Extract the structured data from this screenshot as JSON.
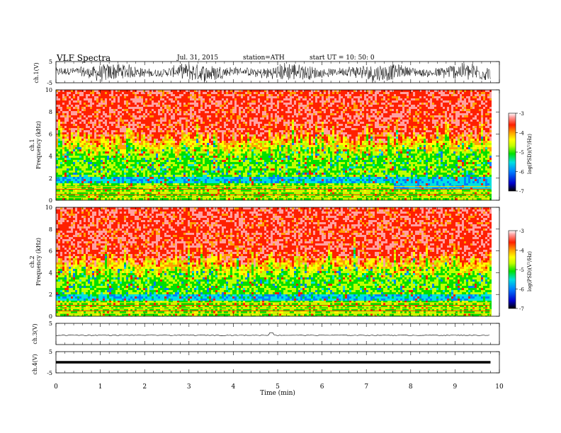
{
  "header": {
    "title": "VLF  Spectra",
    "date": "Jul.  31,  2015",
    "station": "station=ATH",
    "start": "start  UT  =    10: 50: 0"
  },
  "chart_data": [
    {
      "id": "ch1-wave",
      "type": "line",
      "ylabel": "ch.1(V)",
      "ylim": [
        -5,
        5
      ],
      "yticks": [
        "5",
        "-5"
      ],
      "xlim": [
        0,
        10
      ],
      "trace_end_min": 9.8,
      "color": "#000000"
    },
    {
      "id": "ch1-spec",
      "type": "heatmap",
      "ylabel_top": "ch.1",
      "ylabel": "Frequency  (kHz)",
      "ylim": [
        0,
        10
      ],
      "yticks": [
        "0",
        "2",
        "4",
        "6",
        "8",
        "10"
      ],
      "xlim": [
        0,
        10
      ],
      "colorbar": {
        "label": "log(PSD)(V²/Hz)",
        "range": [
          -7,
          -3
        ],
        "ticks": [
          "-3",
          "-4",
          "-5",
          "-6",
          "-7"
        ]
      }
    },
    {
      "id": "ch2-spec",
      "type": "heatmap",
      "ylabel_top": "ch.2",
      "ylabel": "Frequency  (kHz)",
      "ylim": [
        0,
        10
      ],
      "yticks": [
        "0",
        "2",
        "4",
        "6",
        "8",
        "10"
      ],
      "xlim": [
        0,
        10
      ],
      "colorbar": {
        "label": "log(PSD)(V²/Hz)",
        "range": [
          -7,
          -3
        ],
        "ticks": [
          "-3",
          "-4",
          "-5",
          "-6",
          "-7"
        ]
      }
    },
    {
      "id": "ch3-wave",
      "type": "line",
      "ylabel": "ch.3(V)",
      "ylim": [
        -5,
        5
      ],
      "yticks": [
        "5"
      ],
      "xlim": [
        0,
        10
      ]
    },
    {
      "id": "ch4-wave",
      "type": "line",
      "ylabel": "ch.4(V)",
      "ylim": [
        -5,
        5
      ],
      "yticks": [
        "5",
        "-5"
      ],
      "xlim": [
        0,
        10
      ],
      "xlabel": "Time  (min)",
      "xticks": [
        "0",
        "1",
        "2",
        "3",
        "4",
        "5",
        "6",
        "7",
        "8",
        "9",
        "10"
      ]
    }
  ],
  "colors": {
    "scale": [
      "#000000",
      "#0000cc",
      "#0080ff",
      "#00e0e0",
      "#00e000",
      "#c0ff00",
      "#ffff00",
      "#ffa000",
      "#ff2000",
      "#ffa0a0",
      "#ffffff"
    ]
  }
}
